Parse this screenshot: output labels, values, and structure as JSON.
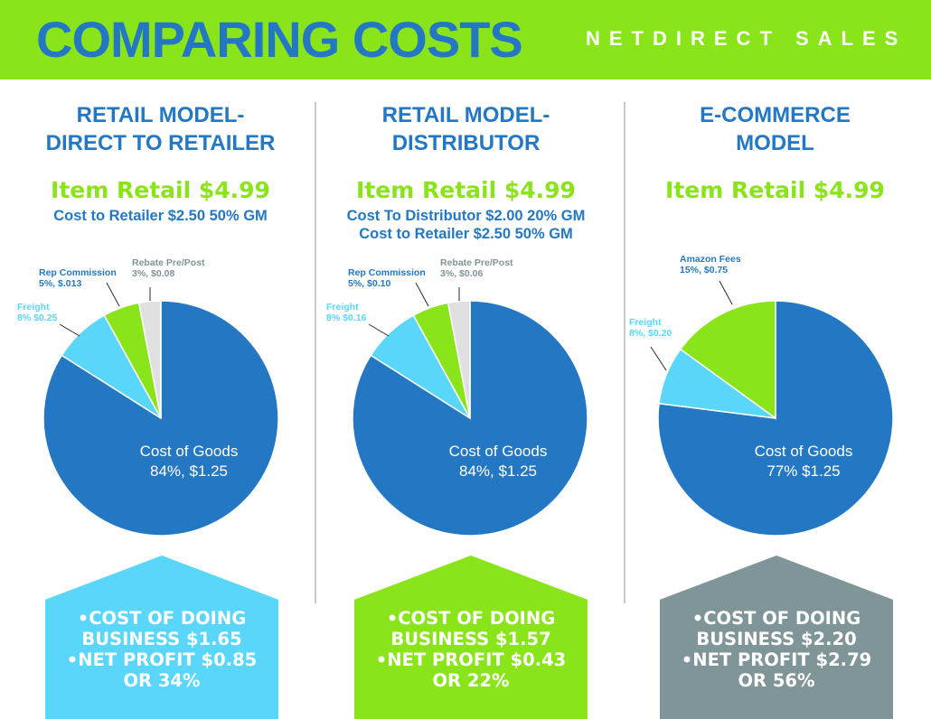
{
  "header": {
    "title": "COMPARING COSTS",
    "brand": "NETDIRECT SALES"
  },
  "colors": {
    "header_bg": "#8ae41a",
    "title_blue": "#2478c3",
    "retail_green": "#8ae41a",
    "cost_of_goods": "#2478c3",
    "freight": "#5bd6fb",
    "rep_commission": "#8ae41a",
    "rebate": "#e0e0e0",
    "amazon_fees": "#8ae41a",
    "house_blue": "#5bd6fb",
    "house_green": "#8ae41a",
    "house_gray": "#7f9597"
  },
  "panels": [
    {
      "title_lines": [
        "RETAIL MODEL-",
        "DIRECT TO RETAILER"
      ],
      "item_retail": "Item Retail $4.99",
      "cost_lines": [
        "Cost to Retailer $2.50 50% GM"
      ],
      "center_label": [
        "Cost of Goods",
        "84%, $1.25"
      ],
      "summary_lines": [
        "•COST OF DOING",
        "BUSINESS $1.65",
        "•NET PROFIT $0.85",
        "OR 34%"
      ]
    },
    {
      "title_lines": [
        "RETAIL MODEL-",
        "DISTRIBUTOR"
      ],
      "item_retail": "Item Retail $4.99",
      "cost_lines": [
        "Cost To Distributor $2.00 20% GM",
        "Cost to Retailer $2.50 50% GM"
      ],
      "center_label": [
        "Cost of Goods",
        "84%, $1.25"
      ],
      "summary_lines": [
        "•COST OF DOING",
        "BUSINESS $1.57",
        "•NET PROFIT $0.43",
        "OR 22%"
      ]
    },
    {
      "title_lines": [
        "E-COMMERCE",
        "MODEL"
      ],
      "item_retail": "Item Retail $4.99",
      "cost_lines": [],
      "center_label": [
        "Cost of Goods",
        "77% $1.25"
      ],
      "summary_lines": [
        "•COST OF DOING",
        "BUSINESS $2.20",
        "•NET PROFIT $2.79",
        "OR 56%"
      ]
    }
  ],
  "chart_data": [
    {
      "type": "pie",
      "title": "RETAIL MODEL- DIRECT TO RETAILER",
      "slices": [
        {
          "name": "Cost of Goods",
          "percent": 84,
          "value": 1.25,
          "color": "#2478c3",
          "label_lines": [
            "Cost of Goods",
            "84%, $1.25"
          ]
        },
        {
          "name": "Freight",
          "percent": 8,
          "value": 0.25,
          "color": "#5bd6fb",
          "label_lines": [
            "Freight",
            "8% $0.25"
          ]
        },
        {
          "name": "Rep Commission",
          "percent": 5,
          "value": 0.013,
          "color": "#8ae41a",
          "label_lines": [
            "Rep Commission",
            "5%, $.013"
          ]
        },
        {
          "name": "Rebate Pre/Post",
          "percent": 3,
          "value": 0.08,
          "color": "#e0e0e0",
          "label_lines": [
            "Rebate Pre/Post",
            "3%, $0.08"
          ]
        }
      ]
    },
    {
      "type": "pie",
      "title": "RETAIL MODEL- DISTRIBUTOR",
      "slices": [
        {
          "name": "Cost of Goods",
          "percent": 84,
          "value": 1.25,
          "color": "#2478c3",
          "label_lines": [
            "Cost of Goods",
            "84%, $1.25"
          ]
        },
        {
          "name": "Freight",
          "percent": 8,
          "value": 0.16,
          "color": "#5bd6fb",
          "label_lines": [
            "Freight",
            "8% $0.16"
          ]
        },
        {
          "name": "Rep Commission",
          "percent": 5,
          "value": 0.1,
          "color": "#8ae41a",
          "label_lines": [
            "Rep Commission",
            "5%, $0.10"
          ]
        },
        {
          "name": "Rebate Pre/Post",
          "percent": 3,
          "value": 0.06,
          "color": "#e0e0e0",
          "label_lines": [
            "Rebate Pre/Post",
            "3%, $0.06"
          ]
        }
      ]
    },
    {
      "type": "pie",
      "title": "E-COMMERCE MODEL",
      "slices": [
        {
          "name": "Cost of Goods",
          "percent": 77,
          "value": 1.25,
          "color": "#2478c3",
          "label_lines": [
            "Cost of Goods",
            "77% $1.25"
          ]
        },
        {
          "name": "Freight",
          "percent": 8,
          "value": 0.2,
          "color": "#5bd6fb",
          "label_lines": [
            "Freight",
            "8%, $0.20"
          ]
        },
        {
          "name": "Amazon Fees",
          "percent": 15,
          "value": 0.75,
          "color": "#8ae41a",
          "label_lines": [
            "Amazon Fees",
            "15%, $0.75"
          ]
        }
      ]
    }
  ]
}
